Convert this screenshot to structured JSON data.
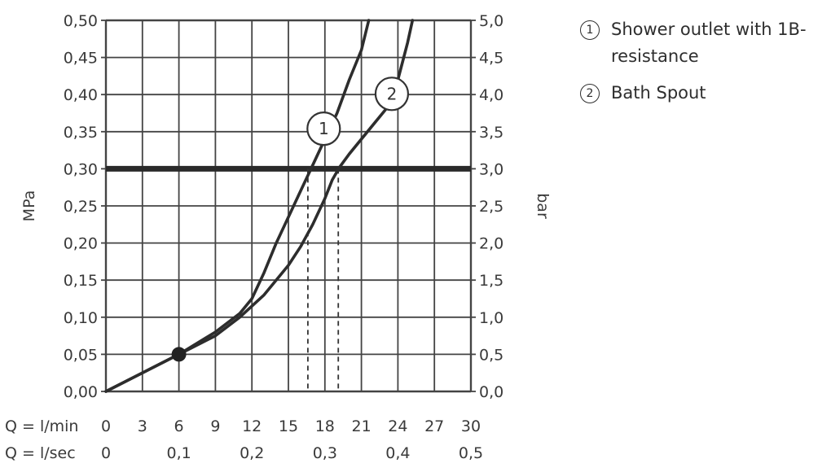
{
  "chart_data": {
    "type": "line",
    "left_axis": {
      "title": "MPa",
      "ylim": [
        0,
        0.5
      ],
      "ticks": [
        "0,00",
        "0,05",
        "0,10",
        "0,15",
        "0,20",
        "0,25",
        "0,30",
        "0,35",
        "0,40",
        "0,45",
        "0,50"
      ]
    },
    "right_axis": {
      "title": "bar",
      "ylim": [
        0,
        5
      ],
      "ticks": [
        "0,0",
        "0,5",
        "1,0",
        "1,5",
        "2,0",
        "2,5",
        "3,0",
        "3,5",
        "4,0",
        "4,5",
        "5,0"
      ]
    },
    "x_axis": {
      "xlim": [
        0,
        30
      ],
      "row1_label": "Q = l/min",
      "row1_ticks": [
        {
          "v": 0,
          "t": "0"
        },
        {
          "v": 3,
          "t": "3"
        },
        {
          "v": 6,
          "t": "6"
        },
        {
          "v": 9,
          "t": "9"
        },
        {
          "v": 12,
          "t": "12"
        },
        {
          "v": 15,
          "t": "15"
        },
        {
          "v": 18,
          "t": "18"
        },
        {
          "v": 21,
          "t": "21"
        },
        {
          "v": 24,
          "t": "24"
        },
        {
          "v": 27,
          "t": "27"
        },
        {
          "v": 30,
          "t": "30"
        }
      ],
      "row2_label": "Q = l/sec",
      "row2_ticks": [
        {
          "v": 0,
          "t": "0"
        },
        {
          "v": 6,
          "t": "0,1"
        },
        {
          "v": 12,
          "t": "0,2"
        },
        {
          "v": 18,
          "t": "0,3"
        },
        {
          "v": 24,
          "t": "0,4"
        },
        {
          "v": 30,
          "t": "0,5"
        }
      ]
    },
    "grid": true,
    "reference_line": {
      "y": 0.3
    },
    "series": [
      {
        "name": "Shower outlet with 1B-resistance",
        "marker": "1",
        "points": [
          [
            0,
            0
          ],
          [
            3,
            0.025
          ],
          [
            6,
            0.05
          ],
          [
            9,
            0.08
          ],
          [
            11,
            0.105
          ],
          [
            12,
            0.125
          ],
          [
            13,
            0.16
          ],
          [
            14,
            0.2
          ],
          [
            15,
            0.235
          ],
          [
            16,
            0.27
          ],
          [
            17,
            0.305
          ],
          [
            18,
            0.34
          ],
          [
            19,
            0.375
          ],
          [
            20,
            0.42
          ],
          [
            21,
            0.46
          ],
          [
            21.6,
            0.5
          ]
        ],
        "label_at": [
          17.9,
          0.354
        ],
        "drop_x": 16.6
      },
      {
        "name": "Bath Spout",
        "marker": "2",
        "points": [
          [
            0,
            0
          ],
          [
            6,
            0.05
          ],
          [
            9,
            0.075
          ],
          [
            11,
            0.1
          ],
          [
            13,
            0.13
          ],
          [
            15,
            0.17
          ],
          [
            16,
            0.195
          ],
          [
            17,
            0.225
          ],
          [
            18,
            0.26
          ],
          [
            18.6,
            0.285
          ],
          [
            19.2,
            0.302
          ],
          [
            20,
            0.32
          ],
          [
            22,
            0.36
          ],
          [
            23,
            0.38
          ],
          [
            24,
            0.42
          ],
          [
            24.8,
            0.47
          ],
          [
            25.2,
            0.5
          ]
        ],
        "label_at": [
          23.5,
          0.401
        ],
        "drop_x": 19.1
      }
    ],
    "common_point": [
      6,
      0.05
    ],
    "legend": [
      {
        "marker": "①",
        "text": "Shower outlet with 1B-resistance"
      },
      {
        "marker": "②",
        "text": "Bath Spout"
      }
    ],
    "legend_position": "right"
  }
}
